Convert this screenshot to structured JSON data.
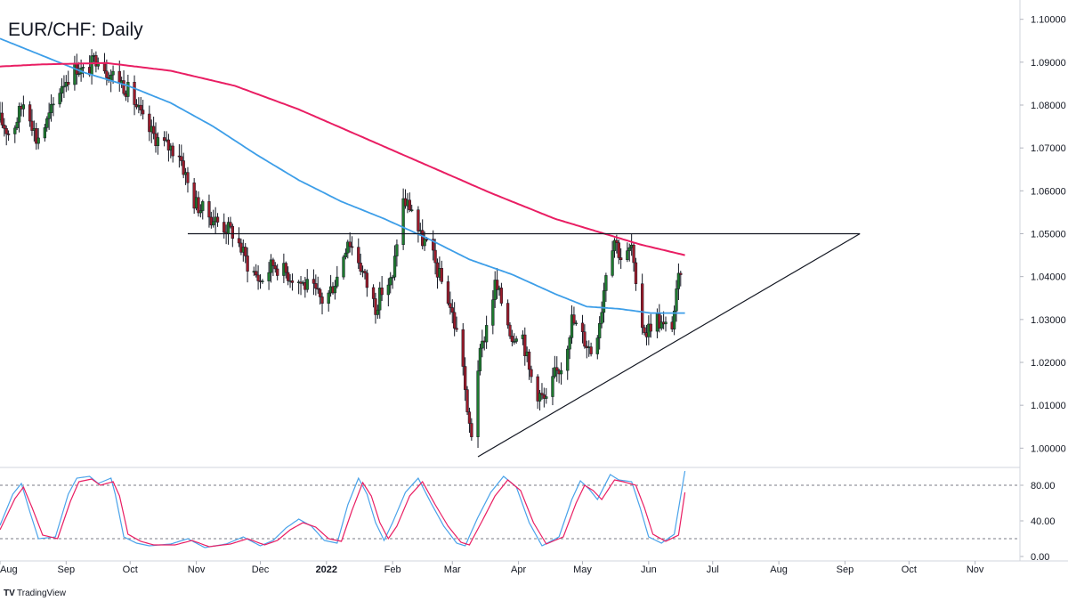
{
  "chart_data": [
    {
      "type": "candlestick",
      "title": "EUR/CHF: Daily",
      "yticks": [
        "1.10000",
        "1.09000",
        "1.08000",
        "1.07000",
        "1.06000",
        "1.05000",
        "1.04000",
        "1.03000",
        "1.02000",
        "1.01000",
        "1.00000"
      ],
      "ylim": [
        0.9955,
        1.1045
      ],
      "xticks": [
        {
          "label": "Aug",
          "x": 0
        },
        {
          "label": "Sep",
          "x": 31
        },
        {
          "label": "Oct",
          "x": 61
        },
        {
          "label": "Nov",
          "x": 92
        },
        {
          "label": "Dec",
          "x": 122
        },
        {
          "label": "2022",
          "x": 153,
          "bold": true
        },
        {
          "label": "Feb",
          "x": 184
        },
        {
          "label": "Mar",
          "x": 212
        },
        {
          "label": "Apr",
          "x": 243
        },
        {
          "label": "May",
          "x": 273
        },
        {
          "label": "Jun",
          "x": 304
        },
        {
          "label": "Jul",
          "x": 334
        },
        {
          "label": "Aug",
          "x": 365
        },
        {
          "label": "Sep",
          "x": 396
        },
        {
          "label": "Oct",
          "x": 426
        },
        {
          "label": "Nov",
          "x": 457
        }
      ],
      "xlim": [
        0,
        478
      ],
      "price_keypoints": [
        [
          0,
          1.0765
        ],
        [
          5,
          1.073
        ],
        [
          12,
          1.082
        ],
        [
          17,
          1.072
        ],
        [
          22,
          1.076
        ],
        [
          29,
          1.085
        ],
        [
          36,
          1.089
        ],
        [
          40,
          1.087
        ],
        [
          46,
          1.092
        ],
        [
          50,
          1.088
        ],
        [
          56,
          1.086
        ],
        [
          62,
          1.082
        ],
        [
          68,
          1.075
        ],
        [
          76,
          1.071
        ],
        [
          84,
          1.069
        ],
        [
          90,
          1.058
        ],
        [
          96,
          1.055
        ],
        [
          104,
          1.052
        ],
        [
          110,
          1.05
        ],
        [
          116,
          1.043
        ],
        [
          122,
          1.039
        ],
        [
          128,
          1.043
        ],
        [
          134,
          1.041
        ],
        [
          140,
          1.039
        ],
        [
          146,
          1.037
        ],
        [
          152,
          1.034
        ],
        [
          158,
          1.04
        ],
        [
          163,
          1.049
        ],
        [
          168,
          1.044
        ],
        [
          172,
          1.038
        ],
        [
          176,
          1.033
        ],
        [
          180,
          1.038
        ],
        [
          184,
          1.039
        ],
        [
          188,
          1.058
        ],
        [
          193,
          1.056
        ],
        [
          197,
          1.049
        ],
        [
          201,
          1.047
        ],
        [
          206,
          1.04
        ],
        [
          210,
          1.035
        ],
        [
          214,
          1.027
        ],
        [
          217,
          1.02
        ],
        [
          219,
          1.007
        ],
        [
          221,
          1.0035
        ],
        [
          224,
          1.019
        ],
        [
          229,
          1.031
        ],
        [
          232,
          1.038
        ],
        [
          236,
          1.033
        ],
        [
          240,
          1.026
        ],
        [
          244,
          1.029
        ],
        [
          248,
          1.018
        ],
        [
          252,
          1.013
        ],
        [
          256,
          1.0105
        ],
        [
          260,
          1.017
        ],
        [
          264,
          1.02
        ],
        [
          268,
          1.03
        ],
        [
          273,
          1.026
        ],
        [
          278,
          1.022
        ],
        [
          282,
          1.033
        ],
        [
          285,
          1.046
        ],
        [
          288,
          1.049
        ],
        [
          292,
          1.043
        ],
        [
          296,
          1.047
        ],
        [
          299,
          1.031
        ],
        [
          303,
          1.027
        ],
        [
          307,
          1.031
        ],
        [
          311,
          1.028
        ],
        [
          315,
          1.029
        ],
        [
          319,
          1.042
        ],
        [
          321,
          1.049
        ]
      ],
      "sma_fast": [
        [
          0,
          1.0955
        ],
        [
          20,
          1.0915
        ],
        [
          40,
          1.0875
        ],
        [
          60,
          1.0845
        ],
        [
          80,
          1.0805
        ],
        [
          100,
          1.075
        ],
        [
          120,
          1.0685
        ],
        [
          140,
          1.0625
        ],
        [
          160,
          1.0575
        ],
        [
          180,
          1.0535
        ],
        [
          200,
          1.049
        ],
        [
          220,
          1.044
        ],
        [
          240,
          1.0405
        ],
        [
          260,
          1.036
        ],
        [
          275,
          1.033
        ],
        [
          290,
          1.0325
        ],
        [
          305,
          1.0315
        ],
        [
          321,
          1.0315
        ]
      ],
      "sma_slow": [
        [
          0,
          1.089
        ],
        [
          20,
          1.0895
        ],
        [
          50,
          1.0898
        ],
        [
          80,
          1.088
        ],
        [
          110,
          1.0845
        ],
        [
          140,
          1.079
        ],
        [
          170,
          1.0725
        ],
        [
          200,
          1.066
        ],
        [
          230,
          1.0595
        ],
        [
          260,
          1.0535
        ],
        [
          280,
          1.0505
        ],
        [
          300,
          1.0475
        ],
        [
          321,
          1.045
        ]
      ],
      "sma_fast_color": "#3d9ee8",
      "sma_slow_color": "#e91e63",
      "resistance": {
        "value": 1.05,
        "x_start": 88,
        "x_end": 403
      },
      "support": {
        "x1": 224,
        "y1": 0.998,
        "x2": 403,
        "y2": 1.05
      },
      "up_color": "#1e7a2e",
      "down_color": "#9b1b2a"
    },
    {
      "type": "line",
      "name": "stochastic",
      "yticks": [
        "80.00",
        "40.00",
        "0.00"
      ],
      "ylim": [
        -5,
        100
      ],
      "levels": [
        80,
        20
      ],
      "k_color": "#4aa3ea",
      "d_color": "#e91e63",
      "k_keypoints": [
        [
          0,
          35
        ],
        [
          6,
          70
        ],
        [
          10,
          82
        ],
        [
          14,
          50
        ],
        [
          18,
          20
        ],
        [
          26,
          22
        ],
        [
          32,
          70
        ],
        [
          36,
          88
        ],
        [
          42,
          90
        ],
        [
          46,
          82
        ],
        [
          52,
          88
        ],
        [
          54,
          70
        ],
        [
          58,
          22
        ],
        [
          64,
          15
        ],
        [
          70,
          12
        ],
        [
          80,
          14
        ],
        [
          88,
          20
        ],
        [
          96,
          10
        ],
        [
          106,
          14
        ],
        [
          114,
          22
        ],
        [
          122,
          12
        ],
        [
          128,
          18
        ],
        [
          134,
          32
        ],
        [
          140,
          42
        ],
        [
          146,
          34
        ],
        [
          152,
          18
        ],
        [
          158,
          15
        ],
        [
          163,
          58
        ],
        [
          168,
          88
        ],
        [
          172,
          70
        ],
        [
          176,
          38
        ],
        [
          180,
          18
        ],
        [
          184,
          38
        ],
        [
          190,
          72
        ],
        [
          196,
          88
        ],
        [
          202,
          60
        ],
        [
          208,
          34
        ],
        [
          214,
          15
        ],
        [
          218,
          12
        ],
        [
          224,
          44
        ],
        [
          230,
          72
        ],
        [
          236,
          90
        ],
        [
          242,
          78
        ],
        [
          248,
          38
        ],
        [
          254,
          12
        ],
        [
          262,
          22
        ],
        [
          268,
          64
        ],
        [
          272,
          85
        ],
        [
          276,
          76
        ],
        [
          280,
          64
        ],
        [
          286,
          92
        ],
        [
          290,
          86
        ],
        [
          296,
          84
        ],
        [
          300,
          55
        ],
        [
          304,
          22
        ],
        [
          310,
          15
        ],
        [
          316,
          25
        ],
        [
          321,
          96
        ]
      ],
      "d_keypoints": [
        [
          0,
          30
        ],
        [
          7,
          65
        ],
        [
          11,
          78
        ],
        [
          15,
          55
        ],
        [
          20,
          24
        ],
        [
          27,
          20
        ],
        [
          33,
          62
        ],
        [
          37,
          84
        ],
        [
          43,
          87
        ],
        [
          47,
          80
        ],
        [
          53,
          84
        ],
        [
          56,
          68
        ],
        [
          60,
          25
        ],
        [
          66,
          17
        ],
        [
          72,
          13
        ],
        [
          82,
          13
        ],
        [
          90,
          18
        ],
        [
          98,
          11
        ],
        [
          108,
          14
        ],
        [
          116,
          20
        ],
        [
          124,
          13
        ],
        [
          130,
          18
        ],
        [
          136,
          30
        ],
        [
          142,
          38
        ],
        [
          148,
          33
        ],
        [
          154,
          20
        ],
        [
          160,
          17
        ],
        [
          165,
          52
        ],
        [
          170,
          83
        ],
        [
          174,
          68
        ],
        [
          178,
          38
        ],
        [
          182,
          20
        ],
        [
          186,
          34
        ],
        [
          192,
          68
        ],
        [
          198,
          84
        ],
        [
          204,
          58
        ],
        [
          210,
          34
        ],
        [
          216,
          16
        ],
        [
          220,
          13
        ],
        [
          226,
          40
        ],
        [
          232,
          68
        ],
        [
          238,
          86
        ],
        [
          244,
          74
        ],
        [
          250,
          38
        ],
        [
          256,
          14
        ],
        [
          264,
          22
        ],
        [
          270,
          60
        ],
        [
          274,
          80
        ],
        [
          278,
          74
        ],
        [
          282,
          64
        ],
        [
          288,
          86
        ],
        [
          292,
          84
        ],
        [
          298,
          80
        ],
        [
          302,
          55
        ],
        [
          306,
          25
        ],
        [
          312,
          17
        ],
        [
          318,
          24
        ],
        [
          321,
          72
        ]
      ]
    }
  ],
  "brand": {
    "logo": "TV",
    "name": "TradingView"
  }
}
